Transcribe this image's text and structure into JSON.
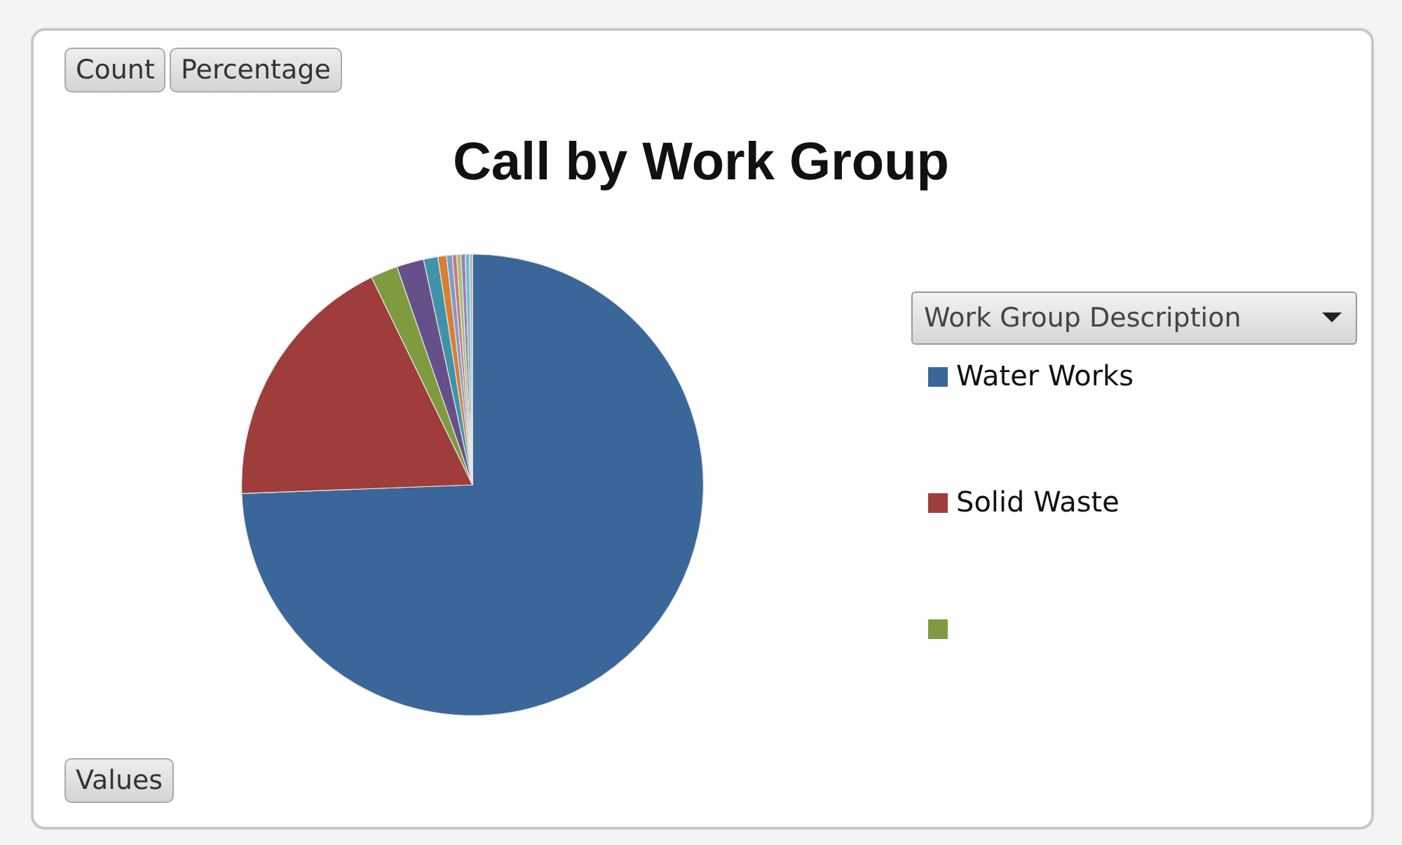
{
  "chart_data": {
    "type": "pie",
    "title": "Call by Work Group",
    "legend_title": "Work Group Description",
    "legend": "right",
    "categories": [
      "Water Works",
      "Solid Waste",
      null,
      null,
      null,
      null,
      null,
      null,
      null,
      null,
      null,
      null
    ],
    "values": [
      74.4,
      18.4,
      1.9,
      1.9,
      1.0,
      0.6,
      0.4,
      0.3,
      0.3,
      0.3,
      0.3,
      0.2
    ],
    "colors": [
      "#3b6699",
      "#9e3d3a",
      "#7f9a3f",
      "#66508a",
      "#3f93a8",
      "#d77f33",
      "#7c9ec9",
      "#c97b79",
      "#a8c276",
      "#9683b3",
      "#74bcd0",
      "#b5b5b5"
    ],
    "annotations": [
      "Count",
      "Percentage",
      "Values"
    ]
  }
}
